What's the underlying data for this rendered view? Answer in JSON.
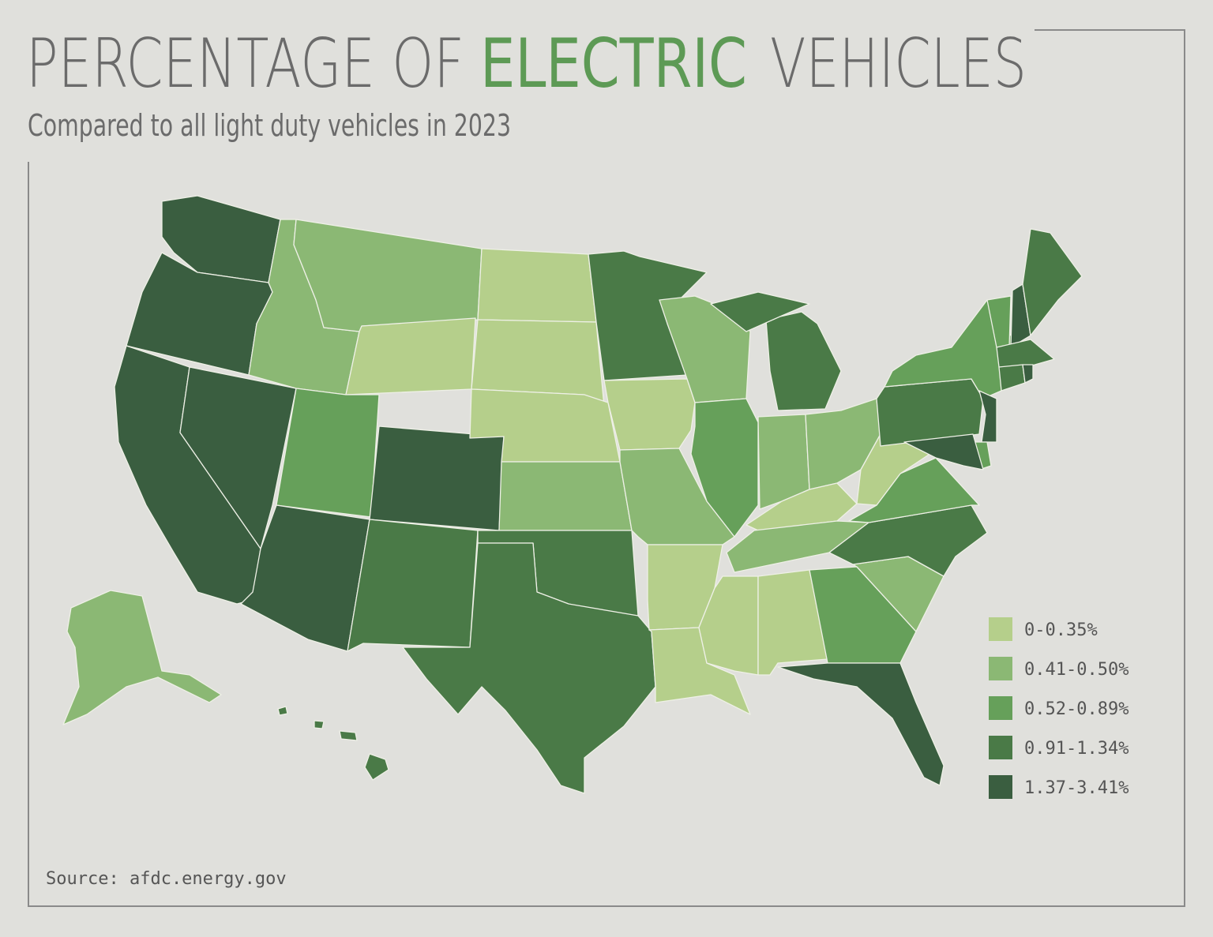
{
  "title_parts": [
    "PERCENTAGE OF",
    "ELECTRIC",
    "VEHICLES"
  ],
  "title_colors": [
    "#6b6b6b",
    "#5d9a55",
    "#6b6b6b"
  ],
  "subtitle": "Compared to all light duty vehicles in 2023",
  "legend": [
    {
      "label": "0-0.35%",
      "color": "#b5cf8b"
    },
    {
      "label": "0.41-0.50%",
      "color": "#8bb874"
    },
    {
      "label": "0.52-0.89%",
      "color": "#66a05a"
    },
    {
      "label": "0.91-1.34%",
      "color": "#4a7a47"
    },
    {
      "label": "1.37-3.41%",
      "color": "#3a5e40"
    }
  ],
  "source": "Source: afdc.energy.gov"
}
